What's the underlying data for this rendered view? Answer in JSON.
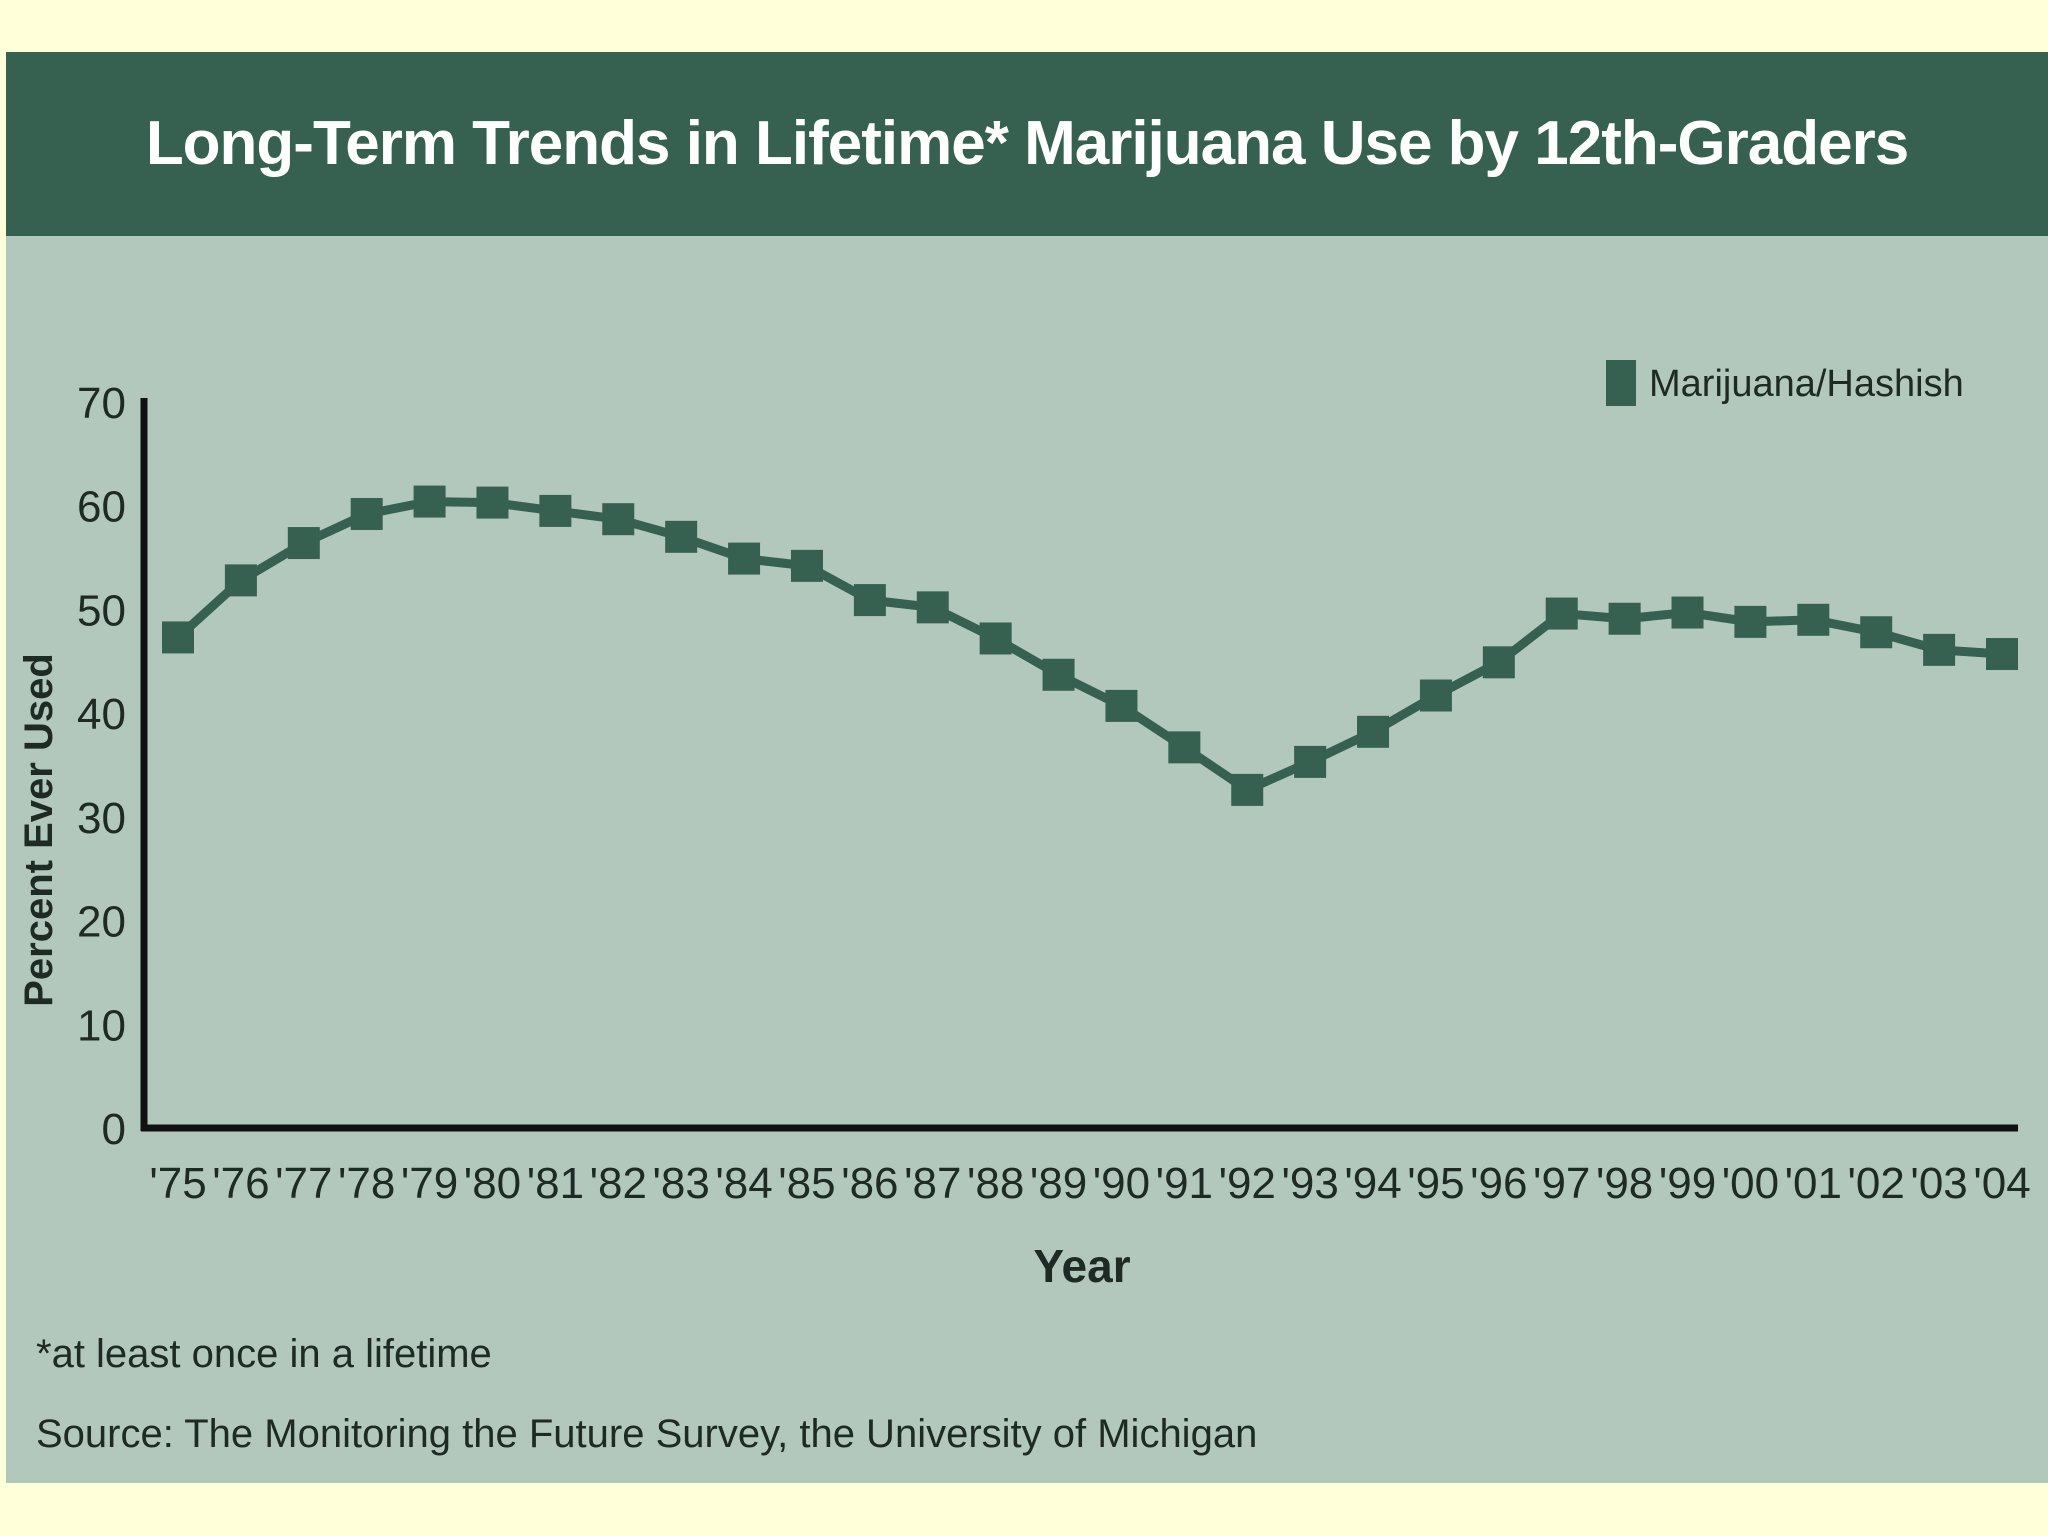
{
  "header": {
    "title": "Long-Term Trends in Lifetime* Marijuana Use by 12th-Graders"
  },
  "footer": {
    "footnote": "*at least once in a lifetime",
    "source": "Source: The Monitoring the Future Survey, the University of Michigan"
  },
  "colors": {
    "page_background": "#ffffd9",
    "header_background": "#366150",
    "plot_background": "#b2c8bc",
    "series": "#366150",
    "axis": "#111111"
  },
  "chart_data": {
    "type": "line",
    "title": "Long-Term Trends in Lifetime* Marijuana Use by 12th-Graders",
    "xlabel": "Year",
    "ylabel": "Percent Ever Used",
    "categories": [
      "'75",
      "'76",
      "'77",
      "'78",
      "'79",
      "'80",
      "'81",
      "'82",
      "'83",
      "'84",
      "'85",
      "'86",
      "'87",
      "'88",
      "'89",
      "'90",
      "'91",
      "'92",
      "'93",
      "'94",
      "'95",
      "'96",
      "'97",
      "'98",
      "'99",
      "'00",
      "'01",
      "'02",
      "'03",
      "'04"
    ],
    "ylim": [
      0,
      70
    ],
    "yticks": [
      0,
      10,
      20,
      30,
      40,
      50,
      60,
      70
    ],
    "grid": false,
    "legend_position": "top-right",
    "series": [
      {
        "name": "Marijuana/Hashish",
        "color": "#366150",
        "marker": "square",
        "values": [
          47.3,
          52.8,
          56.4,
          59.2,
          60.4,
          60.3,
          59.5,
          58.7,
          57.0,
          54.9,
          54.2,
          50.9,
          50.2,
          47.2,
          43.7,
          40.7,
          36.7,
          32.6,
          35.3,
          38.2,
          41.7,
          44.9,
          49.6,
          49.1,
          49.7,
          48.8,
          49.0,
          47.8,
          46.1,
          45.7
        ]
      }
    ]
  }
}
